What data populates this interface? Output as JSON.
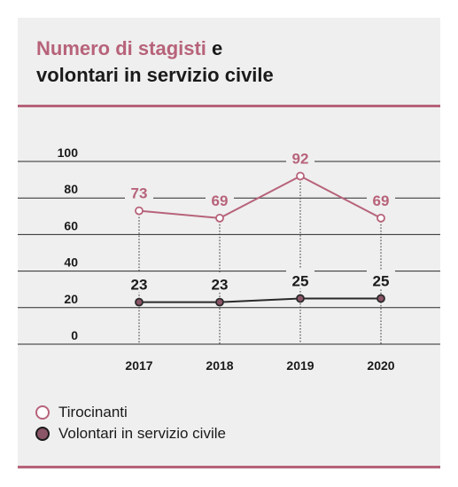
{
  "title": {
    "accent": "Numero di stagisti",
    "rest_line1": " e",
    "line2": "volontari in servizio civile"
  },
  "colors": {
    "card_background": "#efefef",
    "accent": "#b7637a",
    "volontari_fill": "#8a5566",
    "dark_line": "#2a2a2a",
    "text": "#1a1a1a"
  },
  "chart_data": {
    "type": "line",
    "categories": [
      "2017",
      "2018",
      "2019",
      "2020"
    ],
    "y_ticks": [
      0,
      20,
      40,
      60,
      80,
      100
    ],
    "ylim": [
      0,
      100
    ],
    "grid": true,
    "legend_position": "bottom-left",
    "series": [
      {
        "name": "Tirocinanti",
        "values": [
          73,
          69,
          92,
          69
        ],
        "data_labels": [
          "73",
          "69",
          "92",
          "69"
        ]
      },
      {
        "name": "Volontari in servizio civile",
        "values": [
          23,
          23,
          25,
          25
        ],
        "data_labels": [
          "23",
          "23",
          "25",
          "25"
        ]
      }
    ]
  },
  "legend": [
    {
      "label": "Tirocinanti",
      "marker": "hollow-circle"
    },
    {
      "label": "Volontari in servizio civile",
      "marker": "filled-circle"
    }
  ]
}
